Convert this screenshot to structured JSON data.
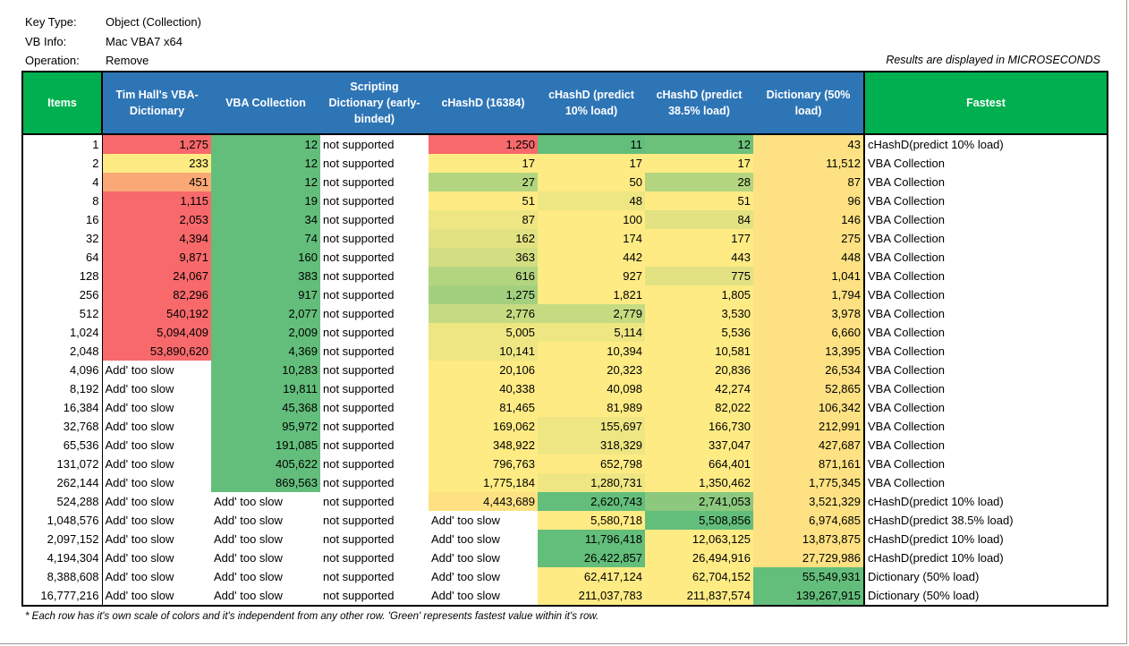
{
  "info": [
    {
      "label": "Key Type:",
      "value": "Object (Collection)"
    },
    {
      "label": "VB Info:",
      "value": "Mac VBA7 x64"
    },
    {
      "label": "Operation:",
      "value": "Remove"
    }
  ],
  "units_note": "Results are displayed in MICROSECONDS",
  "headers": [
    "Items",
    "Tim Hall's VBA-Dictionary",
    "VBA Collection",
    "Scripting Dictionary (early-binded)",
    "cHashD (16384)",
    "cHashD (predict 10% load)",
    "cHashD (predict 38.5% load)",
    "Dictionary (50% load)",
    "Fastest"
  ],
  "palette": {
    "R": "#F8696B",
    "O": "#FAA876",
    "Y": "#FFEB84",
    "D": "#FEE182",
    "G": "#63BE7B",
    "g1": "#6CC17B",
    "g2": "#B3D580",
    "g3": "#A3D07F",
    "g4": "#C6DB81",
    "g5": "#E2E283",
    "g6": "#EEE683",
    "g7": "#8CC87D",
    "g8": "#D2DE82",
    "header_blue": "#2E75B6",
    "header_green": "#00B050"
  },
  "rows": [
    {
      "items": "1",
      "cells": [
        "1,275",
        "12",
        "not supported",
        "1,250",
        "11",
        "12",
        "43"
      ],
      "colors": [
        "R",
        "G",
        null,
        "R",
        "G",
        "g1",
        "D"
      ],
      "fastest": "cHashD(predict 10% load)"
    },
    {
      "items": "2",
      "cells": [
        "233",
        "12",
        "not supported",
        "17",
        "17",
        "17",
        "11,512"
      ],
      "colors": [
        "Y",
        "G",
        null,
        "Y",
        "Y",
        "Y",
        "D"
      ],
      "fastest": "VBA Collection"
    },
    {
      "items": "4",
      "cells": [
        "451",
        "12",
        "not supported",
        "27",
        "50",
        "28",
        "87"
      ],
      "colors": [
        "O",
        "G",
        null,
        "g2",
        "Y",
        "g2",
        "D"
      ],
      "fastest": "VBA Collection"
    },
    {
      "items": "8",
      "cells": [
        "1,115",
        "19",
        "not supported",
        "51",
        "48",
        "51",
        "96"
      ],
      "colors": [
        "R",
        "G",
        null,
        "Y",
        "g6",
        "Y",
        "D"
      ],
      "fastest": "VBA Collection"
    },
    {
      "items": "16",
      "cells": [
        "2,053",
        "34",
        "not supported",
        "87",
        "100",
        "84",
        "146"
      ],
      "colors": [
        "R",
        "G",
        null,
        "g6",
        "Y",
        "g5",
        "D"
      ],
      "fastest": "VBA Collection"
    },
    {
      "items": "32",
      "cells": [
        "4,394",
        "74",
        "not supported",
        "162",
        "174",
        "177",
        "275"
      ],
      "colors": [
        "R",
        "G",
        null,
        "g5",
        "Y",
        "Y",
        "D"
      ],
      "fastest": "VBA Collection"
    },
    {
      "items": "64",
      "cells": [
        "9,871",
        "160",
        "not supported",
        "363",
        "442",
        "443",
        "448"
      ],
      "colors": [
        "R",
        "G",
        null,
        "g8",
        "Y",
        "Y",
        "D"
      ],
      "fastest": "VBA Collection"
    },
    {
      "items": "128",
      "cells": [
        "24,067",
        "383",
        "not supported",
        "616",
        "927",
        "775",
        "1,041"
      ],
      "colors": [
        "R",
        "G",
        null,
        "g2",
        "Y",
        "g5",
        "D"
      ],
      "fastest": "VBA Collection"
    },
    {
      "items": "256",
      "cells": [
        "82,296",
        "917",
        "not supported",
        "1,275",
        "1,821",
        "1,805",
        "1,794"
      ],
      "colors": [
        "R",
        "G",
        null,
        "g3",
        "Y",
        "Y",
        "D"
      ],
      "fastest": "VBA Collection"
    },
    {
      "items": "512",
      "cells": [
        "540,192",
        "2,077",
        "not supported",
        "2,776",
        "2,779",
        "3,530",
        "3,978"
      ],
      "colors": [
        "R",
        "G",
        null,
        "g4",
        "g4",
        "Y",
        "D"
      ],
      "fastest": "VBA Collection"
    },
    {
      "items": "1,024",
      "cells": [
        "5,094,409",
        "2,009",
        "not supported",
        "5,005",
        "5,114",
        "5,536",
        "6,660"
      ],
      "colors": [
        "R",
        "G",
        null,
        "g6",
        "g6",
        "Y",
        "D"
      ],
      "fastest": "VBA Collection"
    },
    {
      "items": "2,048",
      "cells": [
        "53,890,620",
        "4,369",
        "not supported",
        "10,141",
        "10,394",
        "10,581",
        "13,395"
      ],
      "colors": [
        "R",
        "G",
        null,
        "g6",
        "Y",
        "Y",
        "D"
      ],
      "fastest": "VBA Collection"
    },
    {
      "items": "4,096",
      "cells": [
        "Add' too slow",
        "10,283",
        "not supported",
        "20,106",
        "20,323",
        "20,836",
        "26,534"
      ],
      "colors": [
        null,
        "G",
        null,
        "Y",
        "Y",
        "Y",
        "D"
      ],
      "fastest": "VBA Collection"
    },
    {
      "items": "8,192",
      "cells": [
        "Add' too slow",
        "19,811",
        "not supported",
        "40,338",
        "40,098",
        "42,274",
        "52,865"
      ],
      "colors": [
        null,
        "G",
        null,
        "Y",
        "Y",
        "Y",
        "D"
      ],
      "fastest": "VBA Collection"
    },
    {
      "items": "16,384",
      "cells": [
        "Add' too slow",
        "45,368",
        "not supported",
        "81,465",
        "81,989",
        "82,022",
        "106,342"
      ],
      "colors": [
        null,
        "G",
        null,
        "Y",
        "Y",
        "Y",
        "D"
      ],
      "fastest": "VBA Collection"
    },
    {
      "items": "32,768",
      "cells": [
        "Add' too slow",
        "95,972",
        "not supported",
        "169,062",
        "155,697",
        "166,730",
        "212,991"
      ],
      "colors": [
        null,
        "G",
        null,
        "Y",
        "g6",
        "Y",
        "D"
      ],
      "fastest": "VBA Collection"
    },
    {
      "items": "65,536",
      "cells": [
        "Add' too slow",
        "191,085",
        "not supported",
        "348,922",
        "318,329",
        "337,047",
        "427,687"
      ],
      "colors": [
        null,
        "G",
        null,
        "Y",
        "g6",
        "Y",
        "D"
      ],
      "fastest": "VBA Collection"
    },
    {
      "items": "131,072",
      "cells": [
        "Add' too slow",
        "405,622",
        "not supported",
        "796,763",
        "652,798",
        "664,401",
        "871,161"
      ],
      "colors": [
        null,
        "G",
        null,
        "Y",
        "Y",
        "Y",
        "D"
      ],
      "fastest": "VBA Collection"
    },
    {
      "items": "262,144",
      "cells": [
        "Add' too slow",
        "869,563",
        "not supported",
        "1,775,184",
        "1,280,731",
        "1,350,462",
        "1,775,345"
      ],
      "colors": [
        null,
        "G",
        null,
        "Y",
        "g6",
        "Y",
        "D"
      ],
      "fastest": "VBA Collection"
    },
    {
      "items": "524,288",
      "cells": [
        "Add' too slow",
        "Add' too slow",
        "not supported",
        "4,443,689",
        "2,620,743",
        "2,741,053",
        "3,521,329"
      ],
      "colors": [
        null,
        null,
        null,
        "D",
        "G",
        "g7",
        "D"
      ],
      "fastest": "cHashD(predict 10% load)"
    },
    {
      "items": "1,048,576",
      "cells": [
        "Add' too slow",
        "Add' too slow",
        "not supported",
        "Add' too slow",
        "5,580,718",
        "5,508,856",
        "6,974,685"
      ],
      "colors": [
        null,
        null,
        null,
        null,
        "Y",
        "G",
        "D"
      ],
      "fastest": "cHashD(predict 38.5% load)"
    },
    {
      "items": "2,097,152",
      "cells": [
        "Add' too slow",
        "Add' too slow",
        "not supported",
        "Add' too slow",
        "11,796,418",
        "12,063,125",
        "13,873,875"
      ],
      "colors": [
        null,
        null,
        null,
        null,
        "G",
        "Y",
        "D"
      ],
      "fastest": "cHashD(predict 10% load)"
    },
    {
      "items": "4,194,304",
      "cells": [
        "Add' too slow",
        "Add' too slow",
        "not supported",
        "Add' too slow",
        "26,422,857",
        "26,494,916",
        "27,729,986"
      ],
      "colors": [
        null,
        null,
        null,
        null,
        "G",
        "Y",
        "D"
      ],
      "fastest": "cHashD(predict 10% load)"
    },
    {
      "items": "8,388,608",
      "cells": [
        "Add' too slow",
        "Add' too slow",
        "not supported",
        "Add' too slow",
        "62,417,124",
        "62,704,152",
        "55,549,931"
      ],
      "colors": [
        null,
        null,
        null,
        null,
        "Y",
        "Y",
        "G"
      ],
      "fastest": "Dictionary (50% load)"
    },
    {
      "items": "16,777,216",
      "cells": [
        "Add' too slow",
        "Add' too slow",
        "not supported",
        "Add' too slow",
        "211,037,783",
        "211,837,574",
        "139,267,915"
      ],
      "colors": [
        null,
        null,
        null,
        null,
        "Y",
        "Y",
        "G"
      ],
      "fastest": "Dictionary (50% load)"
    }
  ],
  "footnote": "* Each row has it's own scale of colors and it's independent from any other row. 'Green' represents fastest value within it's row."
}
